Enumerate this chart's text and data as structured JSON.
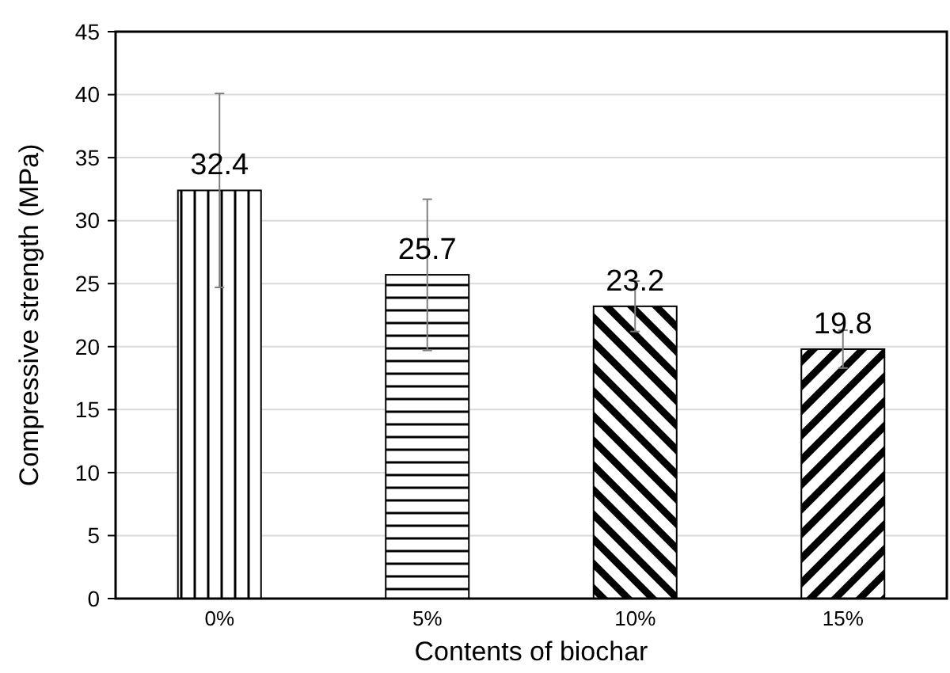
{
  "chart_data": {
    "type": "bar",
    "xlabel": "Contents of biochar",
    "ylabel": "Compressive strength (MPa)",
    "categories": [
      "0%",
      "5%",
      "10%",
      "15%"
    ],
    "values": [
      32.4,
      25.7,
      23.2,
      19.8
    ],
    "errors": [
      7.7,
      6,
      2,
      1.5
    ],
    "colors": [
      "#000000",
      "#000000",
      "#000000",
      "#000000"
    ],
    "ylim": [
      0,
      45
    ],
    "yticks": [
      0,
      5,
      10,
      15,
      20,
      25,
      30,
      35,
      40,
      45
    ],
    "grid": "y",
    "data_labels": true
  }
}
